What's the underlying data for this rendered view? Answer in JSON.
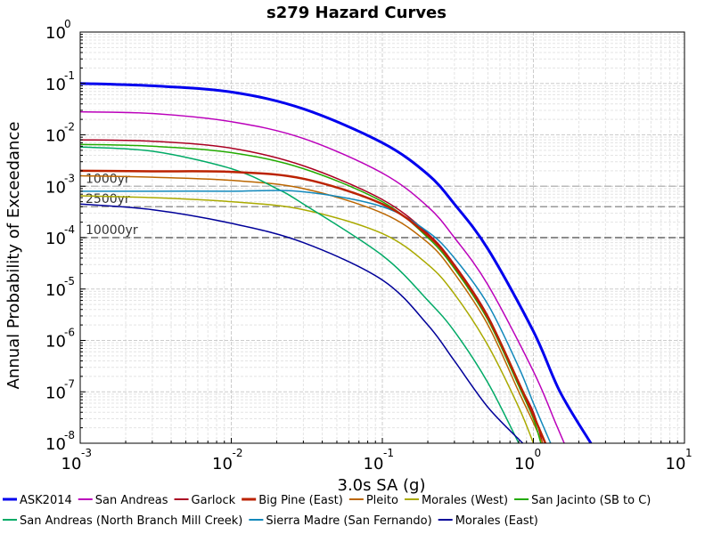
{
  "chart_data": {
    "type": "line",
    "title": "s279 Hazard Curves",
    "xlabel": "3.0s SA (g)",
    "ylabel": "Annual Probability of Exceedance",
    "xscale": "log",
    "yscale": "log",
    "xlim": [
      0.001,
      10
    ],
    "ylim": [
      1e-08,
      1
    ],
    "grid": true,
    "legend_position": "bottom",
    "x_ticks": [
      {
        "base": "10",
        "exp": "-3",
        "value": 0.001
      },
      {
        "base": "10",
        "exp": "-2",
        "value": 0.01
      },
      {
        "base": "10",
        "exp": "-1",
        "value": 0.1
      },
      {
        "base": "10",
        "exp": "0",
        "value": 1
      },
      {
        "base": "10",
        "exp": "1",
        "value": 10
      }
    ],
    "y_ticks": [
      {
        "base": "10",
        "exp": "0",
        "value": 1
      },
      {
        "base": "10",
        "exp": "-1",
        "value": 0.1
      },
      {
        "base": "10",
        "exp": "-2",
        "value": 0.01
      },
      {
        "base": "10",
        "exp": "-3",
        "value": 0.001
      },
      {
        "base": "10",
        "exp": "-4",
        "value": 0.0001
      },
      {
        "base": "10",
        "exp": "-5",
        "value": 1e-05
      },
      {
        "base": "10",
        "exp": "-6",
        "value": 1e-06
      },
      {
        "base": "10",
        "exp": "-7",
        "value": 1e-07
      },
      {
        "base": "10",
        "exp": "-8",
        "value": 1e-08
      }
    ],
    "reference_lines": [
      {
        "label": "1000yr",
        "y": 0.001,
        "color": "#bbbbbb"
      },
      {
        "label": "2500yr",
        "y": 0.0004,
        "color": "#999999"
      },
      {
        "label": "10000yr",
        "y": 0.0001,
        "color": "#666666"
      }
    ],
    "series": [
      {
        "name": "ASK2014",
        "color": "#0000ee",
        "width": 3,
        "points": [
          [
            0.001,
            0.1
          ],
          [
            0.003,
            0.09
          ],
          [
            0.01,
            0.068
          ],
          [
            0.03,
            0.032
          ],
          [
            0.1,
            0.007
          ],
          [
            0.2,
            0.0017
          ],
          [
            0.3,
            0.00045
          ],
          [
            0.5,
            6e-05
          ],
          [
            1.0,
            1.5e-06
          ],
          [
            1.5,
            1e-07
          ],
          [
            2.4,
            1e-08
          ]
        ]
      },
      {
        "name": "San Andreas",
        "color": "#bb00bb",
        "width": 1.5,
        "points": [
          [
            0.001,
            0.028
          ],
          [
            0.003,
            0.026
          ],
          [
            0.01,
            0.018
          ],
          [
            0.03,
            0.0085
          ],
          [
            0.1,
            0.0018
          ],
          [
            0.2,
            0.0004
          ],
          [
            0.3,
            0.0001
          ],
          [
            0.5,
            1.2e-05
          ],
          [
            1.0,
            2.5e-07
          ],
          [
            1.4,
            2.5e-08
          ],
          [
            1.6,
            1e-08
          ]
        ]
      },
      {
        "name": "Garlock",
        "color": "#aa0022",
        "width": 1.5,
        "points": [
          [
            0.001,
            0.008
          ],
          [
            0.003,
            0.0075
          ],
          [
            0.01,
            0.0055
          ],
          [
            0.03,
            0.0025
          ],
          [
            0.1,
            0.00055
          ],
          [
            0.2,
            0.00012
          ],
          [
            0.3,
            3e-05
          ],
          [
            0.5,
            3e-06
          ],
          [
            0.8,
            1.5e-07
          ],
          [
            1.0,
            4e-08
          ],
          [
            1.15,
            1e-08
          ]
        ]
      },
      {
        "name": "Big Pine (East)",
        "color": "#bb2200",
        "width": 2.5,
        "points": [
          [
            0.001,
            0.002
          ],
          [
            0.003,
            0.00195
          ],
          [
            0.01,
            0.0019
          ],
          [
            0.03,
            0.0014
          ],
          [
            0.1,
            0.00045
          ],
          [
            0.2,
            0.00011
          ],
          [
            0.3,
            2.8e-05
          ],
          [
            0.5,
            2.8e-06
          ],
          [
            0.8,
            1.5e-07
          ],
          [
            1.0,
            3.5e-08
          ],
          [
            1.2,
            1e-08
          ]
        ]
      },
      {
        "name": "Pleito",
        "color": "#bb6600",
        "width": 1.5,
        "points": [
          [
            0.001,
            0.0016
          ],
          [
            0.003,
            0.0015
          ],
          [
            0.01,
            0.0013
          ],
          [
            0.03,
            0.0009
          ],
          [
            0.1,
            0.0003
          ],
          [
            0.2,
            8e-05
          ],
          [
            0.3,
            2e-05
          ],
          [
            0.5,
            2e-06
          ],
          [
            0.8,
            1e-07
          ],
          [
            1.0,
            2.5e-08
          ],
          [
            1.15,
            1e-08
          ]
        ]
      },
      {
        "name": "Morales (West)",
        "color": "#aaaa00",
        "width": 1.5,
        "points": [
          [
            0.001,
            0.00065
          ],
          [
            0.003,
            0.0006
          ],
          [
            0.01,
            0.0005
          ],
          [
            0.03,
            0.00035
          ],
          [
            0.1,
            0.00012
          ],
          [
            0.2,
            3e-05
          ],
          [
            0.3,
            8e-06
          ],
          [
            0.5,
            8e-07
          ],
          [
            0.8,
            5e-08
          ],
          [
            1.0,
            1e-08
          ]
        ]
      },
      {
        "name": "San Jacinto (SB to C)",
        "color": "#22aa00",
        "width": 1.5,
        "points": [
          [
            0.001,
            0.0065
          ],
          [
            0.003,
            0.006
          ],
          [
            0.01,
            0.0045
          ],
          [
            0.03,
            0.0022
          ],
          [
            0.1,
            0.0005
          ],
          [
            0.2,
            0.0001
          ],
          [
            0.3,
            2.5e-05
          ],
          [
            0.5,
            2.5e-06
          ],
          [
            0.8,
            1.3e-07
          ],
          [
            1.0,
            3e-08
          ],
          [
            1.12,
            1e-08
          ]
        ]
      },
      {
        "name": "San Andreas (North Branch Mill Creek)",
        "color": "#00aa66",
        "width": 1.5,
        "points": [
          [
            0.001,
            0.0058
          ],
          [
            0.003,
            0.0048
          ],
          [
            0.01,
            0.0022
          ],
          [
            0.02,
            0.0009
          ],
          [
            0.03,
            0.00045
          ],
          [
            0.1,
            4.5e-05
          ],
          [
            0.2,
            6e-06
          ],
          [
            0.3,
            1.5e-06
          ],
          [
            0.5,
            1.5e-07
          ],
          [
            0.8,
            1e-08
          ]
        ]
      },
      {
        "name": "Sierra Madre (San Fernando)",
        "color": "#1188bb",
        "width": 1.5,
        "points": [
          [
            0.001,
            0.0008
          ],
          [
            0.003,
            0.0008
          ],
          [
            0.01,
            0.0008
          ],
          [
            0.03,
            0.00078
          ],
          [
            0.1,
            0.0004
          ],
          [
            0.2,
            0.00013
          ],
          [
            0.3,
            4e-05
          ],
          [
            0.5,
            5e-06
          ],
          [
            0.8,
            3e-07
          ],
          [
            1.0,
            6e-08
          ],
          [
            1.3,
            1e-08
          ]
        ]
      },
      {
        "name": "Morales (East)",
        "color": "#000099",
        "width": 1.5,
        "points": [
          [
            0.001,
            0.00045
          ],
          [
            0.003,
            0.00035
          ],
          [
            0.01,
            0.00019
          ],
          [
            0.03,
            8e-05
          ],
          [
            0.1,
            1.5e-05
          ],
          [
            0.2,
            2e-06
          ],
          [
            0.3,
            4e-07
          ],
          [
            0.5,
            5e-08
          ],
          [
            0.85,
            1e-08
          ]
        ]
      }
    ]
  }
}
